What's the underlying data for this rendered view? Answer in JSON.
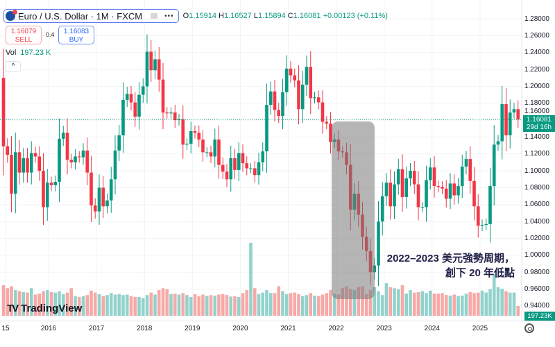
{
  "header": {
    "symbol": "Euro / U.S. Dollar · 1M · FXCM",
    "ohlc": {
      "o_label": "O",
      "o": "1.15914",
      "h_label": "H",
      "h": "1.16527",
      "l_label": "L",
      "l": "1.15894",
      "c_label": "C",
      "c": "1.16081",
      "change": "+0.00123 (+0.11%)"
    },
    "sell": {
      "price": "1.16079",
      "label": "SELL"
    },
    "buy": {
      "price": "1.16083",
      "label": "BUY"
    },
    "spread": "0.4",
    "vol_label": "Vol",
    "vol_value": "197.23 K",
    "collapse_icon": "chevron-up-icon"
  },
  "price_tag": {
    "price": "1.16081",
    "countdown": "29d 16h"
  },
  "volume_tag": "197.23K",
  "annotation": {
    "line1": "2022–2023 美元強勢周期，",
    "line2": "創下 20 年低點"
  },
  "logo": "TradingView",
  "colors": {
    "up": "#089981",
    "down": "#f23645",
    "vol_up": "#92d2cc",
    "vol_down": "#f7a9a7",
    "annotation_box": "#808080"
  },
  "chart_data": {
    "type": "candlestick",
    "interval": "1M",
    "start": "2015-01",
    "first_open": 1.21,
    "closes": [
      1.129,
      1.119,
      1.073,
      1.122,
      1.098,
      1.115,
      1.098,
      1.121,
      1.117,
      1.1,
      1.057,
      1.086,
      1.083,
      1.087,
      1.138,
      1.145,
      1.113,
      1.11,
      1.117,
      1.116,
      1.124,
      1.098,
      1.059,
      1.052,
      1.08,
      1.058,
      1.065,
      1.09,
      1.124,
      1.142,
      1.184,
      1.191,
      1.181,
      1.164,
      1.19,
      1.2,
      1.241,
      1.219,
      1.232,
      1.208,
      1.169,
      1.168,
      1.169,
      1.16,
      1.161,
      1.131,
      1.132,
      1.147,
      1.145,
      1.137,
      1.122,
      1.122,
      1.117,
      1.137,
      1.107,
      1.099,
      1.09,
      1.115,
      1.101,
      1.121,
      1.109,
      1.103,
      1.103,
      1.095,
      1.11,
      1.123,
      1.178,
      1.194,
      1.172,
      1.165,
      1.193,
      1.221,
      1.213,
      1.207,
      1.173,
      1.202,
      1.223,
      1.186,
      1.187,
      1.181,
      1.158,
      1.156,
      1.134,
      1.137,
      1.123,
      1.122,
      1.107,
      1.054,
      1.073,
      1.048,
      1.022,
      1.005,
      0.98,
      0.988,
      1.04,
      1.07,
      1.086,
      1.058,
      1.084,
      1.102,
      1.069,
      1.091,
      1.1,
      1.084,
      1.057,
      1.057,
      1.089,
      1.104,
      1.082,
      1.081,
      1.079,
      1.067,
      1.085,
      1.071,
      1.082,
      1.105,
      1.114,
      1.088,
      1.058,
      1.035,
      1.036,
      1.037,
      1.082,
      1.131,
      1.135,
      1.179,
      1.142,
      1.169,
      1.173,
      1.16081
    ],
    "volume_k": [
      620,
      560,
      600,
      520,
      500,
      480,
      470,
      560,
      430,
      450,
      500,
      520,
      480,
      470,
      500,
      440,
      470,
      560,
      400,
      380,
      400,
      420,
      510,
      470,
      440,
      400,
      420,
      460,
      430,
      440,
      420,
      430,
      400,
      380,
      380,
      360,
      420,
      470,
      430,
      520,
      560,
      540,
      440,
      450,
      430,
      460,
      420,
      380,
      440,
      400,
      430,
      400,
      420,
      410,
      430,
      440,
      420,
      390,
      400,
      380,
      460,
      520,
      1480,
      560,
      440,
      470,
      520,
      460,
      460,
      600,
      500,
      440,
      460,
      470,
      440,
      400,
      420,
      460,
      410,
      400,
      430,
      460,
      520,
      450,
      430,
      560,
      600,
      540,
      520,
      580,
      600,
      440,
      520,
      580,
      500,
      420,
      660,
      580,
      560,
      540,
      620,
      450,
      520,
      470,
      480,
      500,
      460,
      510,
      450,
      450,
      460,
      420,
      410,
      430,
      400,
      410,
      450,
      480,
      460,
      470,
      510,
      470,
      540,
      850,
      580,
      550,
      500,
      470,
      470,
      197.23
    ],
    "y_ticks": [
      "1.28000",
      "1.26000",
      "1.24000",
      "1.22000",
      "1.20000",
      "1.18000",
      "1.16000",
      "1.14000",
      "1.12000",
      "1.10000",
      "1.08000",
      "1.06000",
      "1.04000",
      "1.02000",
      "1.00000",
      "0.98000",
      "0.96000",
      "0.94000"
    ],
    "x_ticks": [
      "15",
      "2016",
      "2017",
      "2018",
      "2019",
      "2020",
      "2021",
      "2022",
      "2023",
      "2024",
      "2025"
    ],
    "current_price": 1.16081,
    "ylim": [
      0.93,
      1.29
    ]
  }
}
